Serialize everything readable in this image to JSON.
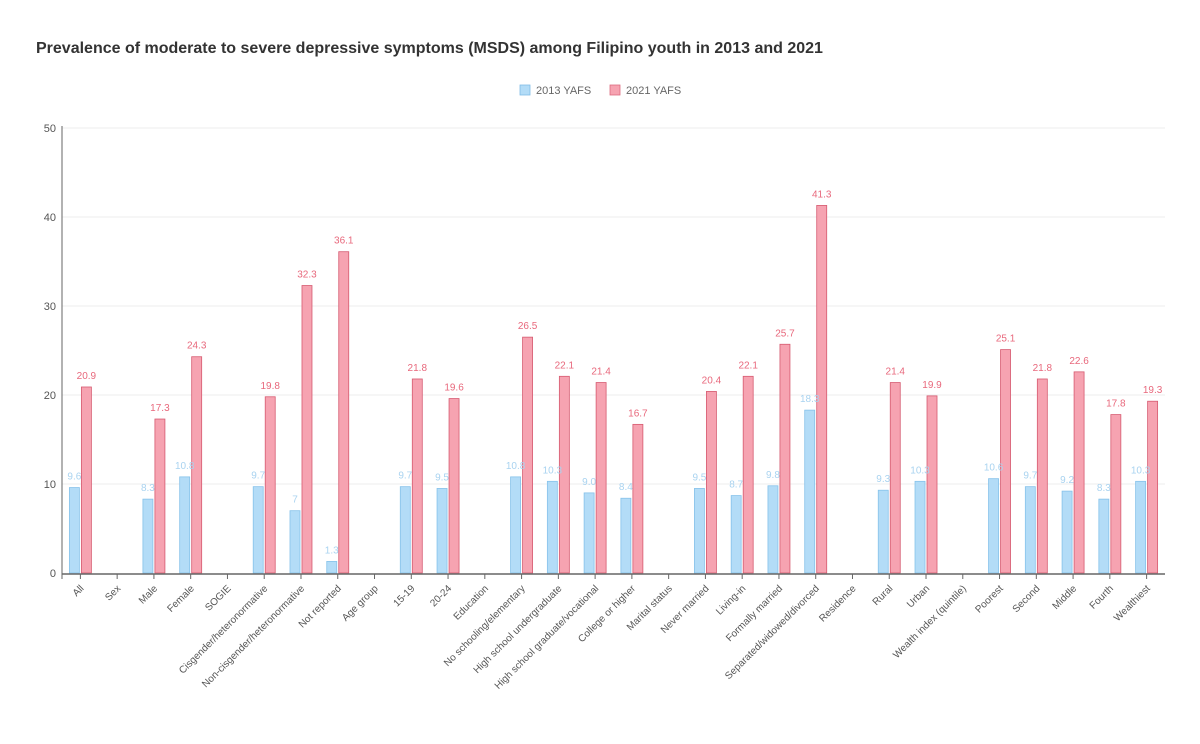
{
  "chart_data": {
    "type": "bar",
    "title": "Prevalence of moderate to severe depressive symptoms (MSDS) among Filipino youth in 2013 and 2021",
    "xlabel": "",
    "ylabel": "",
    "ylim": [
      0,
      50
    ],
    "yticks": [
      0,
      10,
      20,
      30,
      40,
      50
    ],
    "grid": true,
    "legend_position": "top-center",
    "categories": [
      "All",
      "Sex",
      "Male",
      "Female",
      "SOGIE",
      "Cisgender/heteronormative",
      "Non-cisgender/heteronormative",
      "Not reported",
      "Age group",
      "15-19",
      "20-24",
      "Education",
      "No schooling/elementary",
      "High school undergraduate",
      "High school graduate/vocational",
      "College or higher",
      "Marital status",
      "Never married",
      "Living-in",
      "Formally married",
      "Separated/widowed/divorced",
      "Residence",
      "Rural",
      "Urban",
      "Wealth index (quintile)",
      "Poorest",
      "Second",
      "Middle",
      "Fourth",
      "Wealthiest"
    ],
    "series": [
      {
        "name": "2013 YAFS",
        "color": "#b3dcf7",
        "values": [
          9.6,
          null,
          8.3,
          10.8,
          null,
          9.7,
          7,
          1.3,
          null,
          9.7,
          9.5,
          null,
          10.8,
          10.3,
          9.0,
          8.4,
          null,
          9.5,
          8.7,
          9.8,
          18.3,
          null,
          9.3,
          10.3,
          null,
          10.6,
          9.7,
          9.2,
          8.3,
          10.3
        ],
        "labels": [
          "9.6",
          "",
          "8.3",
          "10.8",
          "",
          "9.7",
          "7",
          "1.3",
          "",
          "9.7",
          "9.5",
          "",
          "10.8",
          "10.3",
          "9.0",
          "8.4",
          "",
          "9.5",
          "8.7",
          "9.8",
          "18.3",
          "",
          "9.3",
          "10.3",
          "",
          "10.6",
          "9.7",
          "9.2",
          "8.3",
          "10.3"
        ]
      },
      {
        "name": "2021 YAFS",
        "color": "#f6a3b1",
        "values": [
          20.9,
          null,
          17.3,
          24.3,
          null,
          19.8,
          32.3,
          36.1,
          null,
          21.8,
          19.6,
          null,
          26.5,
          22.1,
          21.4,
          16.7,
          null,
          20.4,
          22.1,
          25.7,
          41.3,
          null,
          21.4,
          19.9,
          null,
          25.1,
          21.8,
          22.6,
          17.8,
          19.3
        ],
        "labels": [
          "20.9",
          "",
          "17.3",
          "24.3",
          "",
          "19.8",
          "32.3",
          "36.1",
          "",
          "21.8",
          "19.6",
          "",
          "26.5",
          "22.1",
          "21.4",
          "16.7",
          "",
          "20.4",
          "22.1",
          "25.7",
          "41.3",
          "",
          "21.4",
          "19.9",
          "",
          "25.1",
          "21.8",
          "22.6",
          "17.8",
          "19.3"
        ]
      }
    ],
    "label_colors": {
      "2013 YAFS": "#a9d3f0",
      "2021 YAFS": "#e8687c"
    },
    "axis_color": "#666666",
    "grid_color": "#eeeeee"
  }
}
